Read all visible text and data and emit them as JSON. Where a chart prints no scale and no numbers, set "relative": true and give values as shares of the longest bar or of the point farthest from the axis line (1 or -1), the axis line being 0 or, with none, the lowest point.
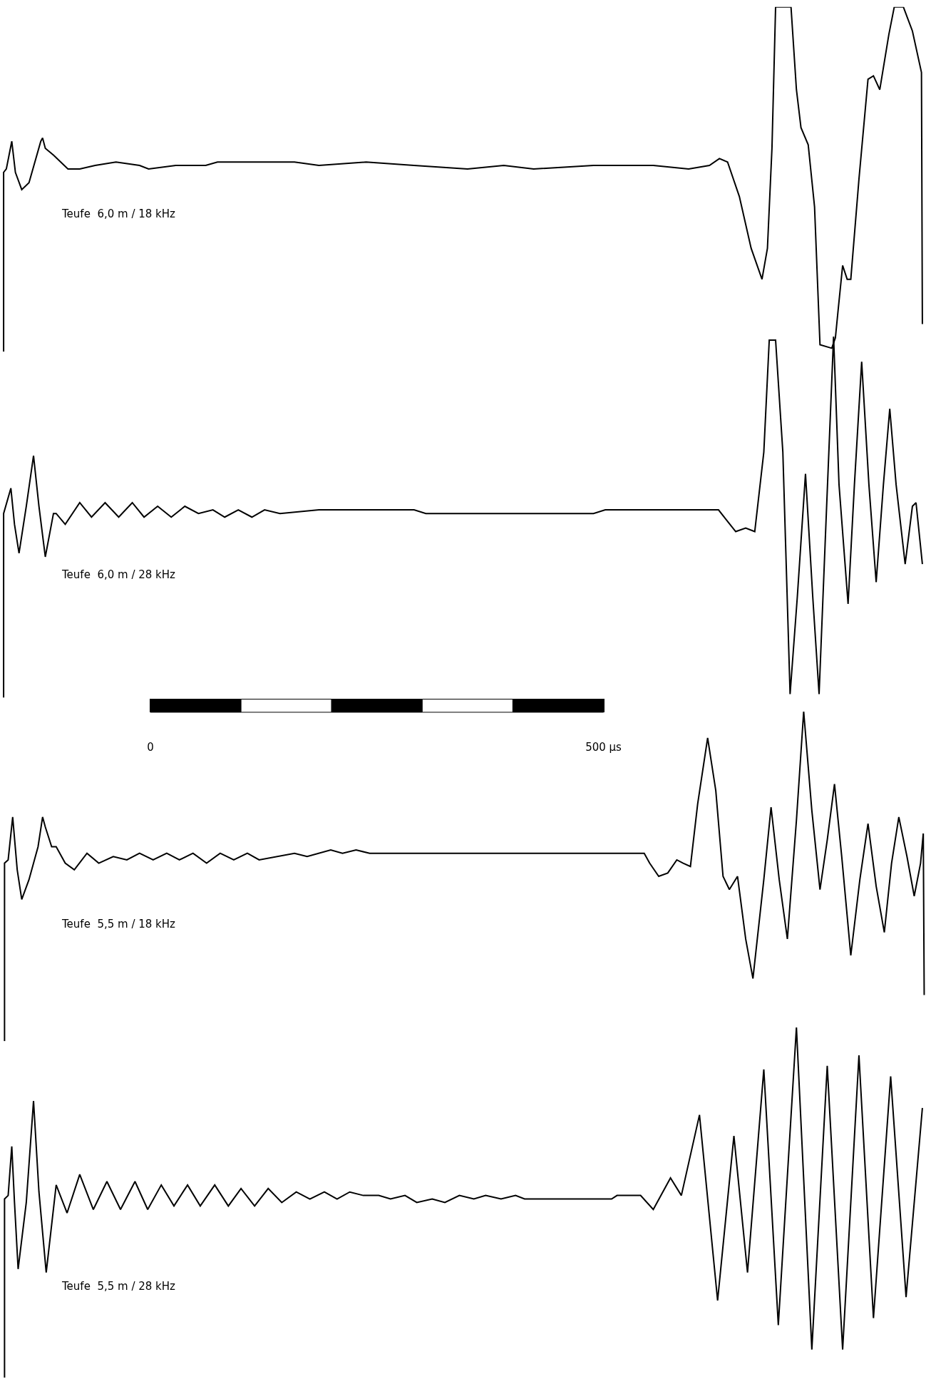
{
  "chart_data": [
    {
      "type": "line",
      "relative": true,
      "xlim": [
        -166,
        856
      ],
      "tick_labels": false,
      "annotations": [
        "Teufe  6,0 m / 18 kHz"
      ],
      "x": [
        -162,
        -162,
        -159,
        -153,
        -149,
        -142,
        -134,
        -121,
        -119,
        -116,
        -107,
        -91,
        -78,
        -61,
        -38,
        -12,
        -2,
        28,
        61,
        74,
        159,
        186,
        238,
        291,
        350,
        390,
        423,
        489,
        555,
        594,
        617,
        628,
        637,
        650,
        663,
        675,
        681,
        686,
        690,
        707,
        713,
        718,
        726,
        733,
        739,
        752,
        756,
        759,
        764,
        769,
        773,
        782,
        792,
        798,
        805,
        815,
        821,
        831,
        841,
        851,
        852
      ],
      "series": [
        {
          "color": "#000000",
          "values": [
            0,
            0.52,
            0.53,
            0.61,
            0.52,
            0.47,
            0.49,
            0.61,
            0.62,
            0.59,
            0.57,
            0.53,
            0.53,
            0.54,
            0.55,
            0.54,
            0.53,
            0.54,
            0.54,
            0.55,
            0.55,
            0.54,
            0.55,
            0.54,
            0.53,
            0.54,
            0.53,
            0.54,
            0.54,
            0.53,
            0.54,
            0.56,
            0.55,
            0.45,
            0.3,
            0.21,
            0.3,
            0.59,
            1.0,
            1.0,
            0.76,
            0.65,
            0.6,
            0.42,
            0.02,
            0.01,
            0.04,
            0.12,
            0.25,
            0.21,
            0.21,
            0.5,
            0.79,
            0.8,
            0.76,
            0.92,
            1.0,
            1.0,
            0.93,
            0.81,
            0.08
          ]
        }
      ]
    },
    {
      "type": "line",
      "relative": true,
      "xlim": [
        -166,
        856
      ],
      "tick_labels": "x",
      "annotations": [
        "Teufe  6,0 m / 28 kHz"
      ],
      "xticks": [
        0,
        {
          "value": 500,
          "label": "500 µs"
        }
      ],
      "x": [
        -162,
        -162,
        -154,
        -150,
        -145,
        -137,
        -129,
        -123,
        -116,
        -107,
        -104,
        -94,
        -78,
        -65,
        -50,
        -35,
        -20,
        -7,
        8,
        23,
        38,
        53,
        69,
        82,
        97,
        112,
        126,
        143,
        186,
        291,
        304,
        489,
        502,
        555,
        581,
        627,
        646,
        657,
        667,
        677,
        683,
        690,
        698,
        706,
        714,
        723,
        731,
        738,
        746,
        754,
        760,
        770,
        777,
        785,
        793,
        801,
        809,
        816,
        823,
        833,
        841,
        845,
        852
      ],
      "series": [
        {
          "color": "#000000",
          "values": [
            0,
            0.51,
            0.58,
            0.48,
            0.4,
            0.53,
            0.67,
            0.53,
            0.39,
            0.51,
            0.51,
            0.48,
            0.54,
            0.5,
            0.54,
            0.5,
            0.54,
            0.5,
            0.53,
            0.5,
            0.53,
            0.51,
            0.52,
            0.5,
            0.52,
            0.5,
            0.52,
            0.51,
            0.52,
            0.52,
            0.51,
            0.51,
            0.52,
            0.52,
            0.52,
            0.52,
            0.46,
            0.47,
            0.46,
            0.68,
            0.99,
            0.99,
            0.68,
            0.01,
            0.28,
            0.62,
            0.28,
            0.01,
            0.51,
            1.0,
            0.59,
            0.26,
            0.59,
            0.93,
            0.59,
            0.32,
            0.59,
            0.8,
            0.59,
            0.37,
            0.53,
            0.54,
            0.37
          ]
        }
      ]
    },
    {
      "type": "line",
      "relative": true,
      "xlim": [
        -166,
        856
      ],
      "tick_labels": false,
      "annotations": [
        "Teufe  5,5 m / 18 kHz"
      ],
      "x": [
        -161,
        -161,
        -157,
        -152,
        -147,
        -142,
        -134,
        -124,
        -119,
        -116,
        -109,
        -104,
        -94,
        -84,
        -70,
        -57,
        -41,
        -26,
        -12,
        3,
        18,
        32,
        47,
        62,
        77,
        92,
        107,
        120,
        159,
        173,
        199,
        212,
        227,
        242,
        291,
        357,
        456,
        545,
        551,
        561,
        571,
        581,
        588,
        596,
        604,
        615,
        624,
        632,
        639,
        648,
        657,
        665,
        677,
        685,
        694,
        703,
        713,
        721,
        730,
        739,
        747,
        755,
        763,
        773,
        783,
        792,
        801,
        810,
        818,
        826,
        835,
        843,
        850,
        853,
        854
      ],
      "series": [
        {
          "color": "#000000",
          "values": [
            0,
            0.54,
            0.55,
            0.68,
            0.52,
            0.43,
            0.49,
            0.59,
            0.68,
            0.65,
            0.59,
            0.59,
            0.54,
            0.52,
            0.57,
            0.54,
            0.56,
            0.55,
            0.57,
            0.55,
            0.57,
            0.55,
            0.57,
            0.54,
            0.57,
            0.55,
            0.57,
            0.55,
            0.57,
            0.56,
            0.58,
            0.57,
            0.58,
            0.57,
            0.57,
            0.57,
            0.57,
            0.57,
            0.54,
            0.5,
            0.51,
            0.55,
            0.54,
            0.53,
            0.72,
            0.92,
            0.76,
            0.5,
            0.46,
            0.5,
            0.31,
            0.19,
            0.49,
            0.71,
            0.49,
            0.31,
            0.67,
            1.0,
            0.7,
            0.46,
            0.61,
            0.78,
            0.56,
            0.26,
            0.49,
            0.66,
            0.47,
            0.33,
            0.54,
            0.68,
            0.56,
            0.44,
            0.54,
            0.63,
            0.14
          ]
        }
      ]
    },
    {
      "type": "line",
      "relative": true,
      "xlim": [
        -166,
        856
      ],
      "tick_labels": false,
      "annotations": [
        "Teufe  5,5 m / 28 kHz"
      ],
      "x": [
        -161,
        -161,
        -157,
        -153,
        -150,
        -146,
        -137,
        -129,
        -123,
        -115,
        -104,
        -92,
        -78,
        -63,
        -48,
        -33,
        -17,
        -3,
        12,
        26,
        41,
        55,
        71,
        86,
        100,
        115,
        130,
        145,
        161,
        176,
        192,
        206,
        220,
        235,
        252,
        265,
        281,
        294,
        311,
        325,
        341,
        357,
        370,
        387,
        403,
        413,
        509,
        515,
        541,
        555,
        574,
        586,
        606,
        626,
        644,
        659,
        677,
        693,
        713,
        730,
        747,
        764,
        782,
        798,
        817,
        834,
        852
      ],
      "series": [
        {
          "color": "#000000",
          "values": [
            0,
            0.51,
            0.52,
            0.66,
            0.5,
            0.31,
            0.5,
            0.79,
            0.53,
            0.3,
            0.55,
            0.47,
            0.58,
            0.48,
            0.56,
            0.48,
            0.56,
            0.48,
            0.55,
            0.49,
            0.55,
            0.49,
            0.55,
            0.49,
            0.54,
            0.49,
            0.54,
            0.5,
            0.53,
            0.51,
            0.53,
            0.51,
            0.53,
            0.52,
            0.52,
            0.51,
            0.52,
            0.5,
            0.51,
            0.5,
            0.52,
            0.51,
            0.52,
            0.51,
            0.52,
            0.51,
            0.51,
            0.52,
            0.52,
            0.48,
            0.57,
            0.52,
            0.75,
            0.22,
            0.69,
            0.3,
            0.88,
            0.15,
            1.0,
            0.08,
            0.89,
            0.08,
            0.92,
            0.17,
            0.86,
            0.23,
            0.77
          ]
        }
      ]
    }
  ]
}
